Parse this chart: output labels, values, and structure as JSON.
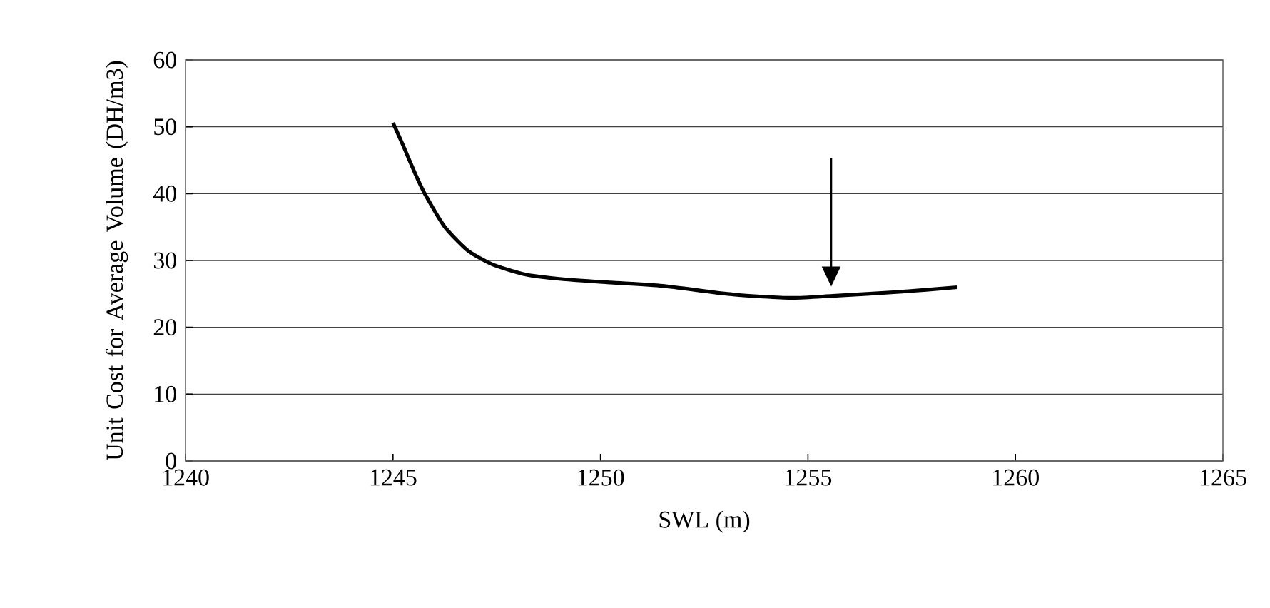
{
  "chart_data": {
    "type": "line",
    "xlabel": "SWL (m)",
    "ylabel": "Unit Cost for Average Volume (DH/m3)",
    "xlim": [
      1240,
      1265
    ],
    "xticks": [
      1240,
      1245,
      1250,
      1255,
      1260,
      1265
    ],
    "ylim": [
      0,
      60
    ],
    "yticks": [
      0,
      10,
      20,
      30,
      40,
      50,
      60
    ],
    "grid": "y",
    "marker": "none",
    "line_style": "solid",
    "series": [
      {
        "color": "#000000",
        "x": [
          1245,
          1245.23,
          1245.57,
          1245.8,
          1246.25,
          1246.8,
          1247.4,
          1248.2,
          1249.1,
          1250.25,
          1251.5,
          1253.2,
          1254.6,
          1255.6,
          1257.2,
          1258.6
        ],
        "values": [
          50.6,
          47.4,
          42.5,
          39.6,
          35.0,
          31.5,
          29.4,
          27.9,
          27.2,
          26.7,
          26.2,
          24.9,
          24.4,
          24.7,
          25.3,
          26.0
        ]
      }
    ]
  }
}
